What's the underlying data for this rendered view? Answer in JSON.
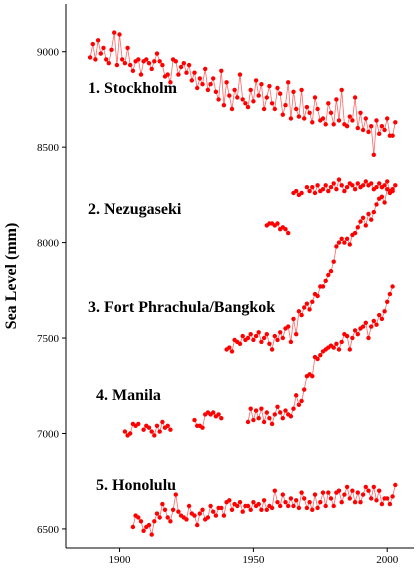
{
  "chart_data": {
    "type": "scatter",
    "title": "",
    "xlabel": "",
    "ylabel": "Sea Level (mm)",
    "xlim": [
      1880,
      2010
    ],
    "ylim": [
      6400,
      9250
    ],
    "x_ticks": [
      1900,
      1950,
      2000
    ],
    "y_ticks": [
      6500,
      7000,
      7500,
      8000,
      8500,
      9000
    ],
    "grid": false,
    "marker_color": "#ff0000",
    "line_color": "#ff6666",
    "series": [
      {
        "name": "1. Stockholm",
        "x": [
          1889,
          1890,
          1891,
          1892,
          1893,
          1894,
          1895,
          1896,
          1897,
          1898,
          1899,
          1900,
          1901,
          1902,
          1903,
          1904,
          1905,
          1906,
          1907,
          1908,
          1909,
          1910,
          1911,
          1912,
          1913,
          1914,
          1915,
          1916,
          1917,
          1918,
          1919,
          1920,
          1921,
          1922,
          1923,
          1924,
          1925,
          1926,
          1927,
          1928,
          1929,
          1930,
          1931,
          1932,
          1933,
          1934,
          1935,
          1936,
          1937,
          1938,
          1939,
          1940,
          1941,
          1942,
          1943,
          1944,
          1945,
          1946,
          1947,
          1948,
          1949,
          1950,
          1951,
          1952,
          1953,
          1954,
          1955,
          1956,
          1957,
          1958,
          1959,
          1960,
          1961,
          1962,
          1963,
          1964,
          1965,
          1966,
          1967,
          1968,
          1969,
          1970,
          1971,
          1972,
          1973,
          1974,
          1975,
          1976,
          1977,
          1978,
          1979,
          1980,
          1981,
          1982,
          1983,
          1984,
          1985,
          1986,
          1987,
          1988,
          1989,
          1990,
          1991,
          1992,
          1993,
          1994,
          1995,
          1996,
          1997,
          1998,
          1999,
          2000,
          2001,
          2002,
          2003
        ],
        "y": [
          8970,
          9040,
          8960,
          9060,
          8990,
          9020,
          8960,
          8940,
          9010,
          9100,
          8930,
          9090,
          8960,
          8940,
          9020,
          8930,
          8900,
          8950,
          8960,
          8880,
          8950,
          8960,
          8940,
          8910,
          8950,
          8990,
          8950,
          8930,
          8870,
          8880,
          8840,
          8960,
          8950,
          8880,
          8920,
          8940,
          8890,
          8930,
          8850,
          8890,
          8810,
          8860,
          8830,
          8910,
          8800,
          8830,
          8860,
          8790,
          8750,
          8900,
          8720,
          8840,
          8770,
          8700,
          8800,
          8760,
          8880,
          8750,
          8730,
          8710,
          8800,
          8740,
          8850,
          8770,
          8830,
          8700,
          8760,
          8820,
          8730,
          8700,
          8810,
          8780,
          8670,
          8720,
          8840,
          8650,
          8790,
          8700,
          8660,
          8800,
          8650,
          8710,
          8680,
          8630,
          8760,
          8700,
          8640,
          8650,
          8620,
          8730,
          8680,
          8620,
          8750,
          8640,
          8800,
          8620,
          8610,
          8660,
          8640,
          8760,
          8600,
          8680,
          8590,
          8650,
          8580,
          8610,
          8460,
          8640,
          8570,
          8610,
          8590,
          8650,
          8560,
          8560,
          8630
        ]
      },
      {
        "name": "2. Nezugaseki",
        "x": [
          1955,
          1956,
          1957,
          1958,
          1959,
          1960,
          1961,
          1962,
          1963,
          1965,
          1966,
          1967,
          1968,
          1970,
          1971,
          1972,
          1973,
          1974,
          1975,
          1976,
          1977,
          1978,
          1979,
          1980,
          1981,
          1982,
          1983,
          1984,
          1985,
          1986,
          1987,
          1988,
          1989,
          1990,
          1991,
          1992,
          1993,
          1994,
          1995,
          1996,
          1997,
          1998,
          1999,
          2000,
          2001,
          2002,
          2003
        ],
        "y": [
          8090,
          8100,
          8100,
          8090,
          8100,
          8070,
          8080,
          8070,
          8050,
          8260,
          8270,
          8250,
          8260,
          8290,
          8270,
          8290,
          8260,
          8300,
          8270,
          8280,
          8300,
          8270,
          8290,
          8310,
          8280,
          8330,
          8300,
          8270,
          8290,
          8310,
          8300,
          8280,
          8310,
          8290,
          8300,
          8320,
          8300,
          8310,
          8280,
          8290,
          8310,
          8290,
          8300,
          8320,
          8270,
          8280,
          8300
        ]
      },
      {
        "name": "3. Fort Phrachula/Bangkok",
        "x": [
          1940,
          1941,
          1942,
          1943,
          1944,
          1945,
          1946,
          1947,
          1948,
          1949,
          1950,
          1951,
          1952,
          1953,
          1954,
          1955,
          1956,
          1957,
          1958,
          1959,
          1960,
          1961,
          1962,
          1963,
          1964,
          1965,
          1966,
          1967,
          1968,
          1969,
          1970,
          1971,
          1972,
          1973,
          1974,
          1975,
          1976,
          1977,
          1978,
          1979,
          1980,
          1981,
          1982,
          1983,
          1984,
          1985,
          1986,
          1987,
          1988,
          1989,
          1990,
          1991,
          1992,
          1993,
          1994,
          1995,
          1996,
          1997,
          1998,
          1999,
          2000,
          2001,
          2002
        ],
        "y": [
          7440,
          7450,
          7430,
          7490,
          7480,
          7470,
          7510,
          7490,
          7500,
          7520,
          7490,
          7510,
          7530,
          7480,
          7500,
          7520,
          7470,
          7440,
          7510,
          7490,
          7530,
          7500,
          7550,
          7560,
          7480,
          7600,
          7520,
          7640,
          7620,
          7660,
          7680,
          7650,
          7690,
          7730,
          7720,
          7770,
          7770,
          7800,
          7830,
          7850,
          7900,
          7980,
          8000,
          8020,
          8000,
          8020,
          7990,
          8040,
          8050,
          8080,
          8110,
          8130,
          8090,
          8150,
          8120,
          8160,
          8200,
          8230,
          8240,
          8210,
          8280,
          8260,
          8270
        ]
      },
      {
        "name": "4. Manila",
        "x": [
          1902,
          1903,
          1904,
          1905,
          1906,
          1907,
          1909,
          1910,
          1911,
          1912,
          1913,
          1914,
          1915,
          1916,
          1917,
          1918,
          1919,
          1928,
          1929,
          1930,
          1931,
          1932,
          1933,
          1934,
          1935,
          1936,
          1937,
          1938,
          1948,
          1949,
          1950,
          1951,
          1952,
          1953,
          1954,
          1955,
          1956,
          1957,
          1958,
          1959,
          1960,
          1961,
          1962,
          1963,
          1964,
          1965,
          1966,
          1967,
          1968,
          1969,
          1970,
          1971,
          1972,
          1973,
          1974,
          1975,
          1976,
          1977,
          1978,
          1979,
          1980,
          1981,
          1982,
          1983,
          1984,
          1985,
          1986,
          1987,
          1988,
          1989,
          1990,
          1991,
          1992,
          1993,
          1994,
          1995,
          1996,
          1997,
          1998,
          1999,
          2000,
          2001,
          2002
        ],
        "y": [
          7010,
          6990,
          7000,
          7050,
          7040,
          7050,
          7020,
          7040,
          7030,
          7010,
          6990,
          7040,
          7010,
          7060,
          7030,
          7040,
          7020,
          7070,
          7040,
          7040,
          7030,
          7100,
          7110,
          7100,
          7110,
          7090,
          7100,
          7080,
          7060,
          7130,
          7070,
          7120,
          7080,
          7130,
          7060,
          7110,
          7080,
          7050,
          7100,
          7140,
          7110,
          7080,
          7120,
          7100,
          7090,
          7130,
          7200,
          7150,
          7170,
          7230,
          7300,
          7310,
          7300,
          7400,
          7390,
          7410,
          7430,
          7440,
          7450,
          7460,
          7450,
          7470,
          7440,
          7480,
          7520,
          7510,
          7440,
          7500,
          7540,
          7520,
          7550,
          7560,
          7580,
          7500,
          7560,
          7590,
          7570,
          7620,
          7600,
          7640,
          7690,
          7730,
          7770
        ]
      },
      {
        "name": "5. Honolulu",
        "x": [
          1905,
          1906,
          1907,
          1908,
          1909,
          1910,
          1911,
          1912,
          1913,
          1914,
          1915,
          1916,
          1917,
          1918,
          1919,
          1920,
          1921,
          1922,
          1923,
          1924,
          1925,
          1926,
          1927,
          1928,
          1929,
          1930,
          1931,
          1932,
          1933,
          1934,
          1935,
          1936,
          1937,
          1938,
          1939,
          1940,
          1941,
          1942,
          1943,
          1944,
          1945,
          1946,
          1947,
          1948,
          1949,
          1950,
          1951,
          1952,
          1953,
          1954,
          1955,
          1956,
          1957,
          1958,
          1959,
          1960,
          1961,
          1962,
          1963,
          1964,
          1965,
          1966,
          1967,
          1968,
          1969,
          1970,
          1971,
          1972,
          1973,
          1974,
          1975,
          1976,
          1977,
          1978,
          1979,
          1980,
          1981,
          1982,
          1983,
          1984,
          1985,
          1986,
          1987,
          1988,
          1989,
          1990,
          1991,
          1992,
          1993,
          1994,
          1995,
          1996,
          1997,
          1998,
          1999,
          2000,
          2001,
          2002,
          2003
        ],
        "y": [
          6510,
          6570,
          6560,
          6540,
          6490,
          6510,
          6520,
          6470,
          6540,
          6580,
          6560,
          6630,
          6600,
          6560,
          6540,
          6600,
          6680,
          6590,
          6570,
          6560,
          6550,
          6620,
          6580,
          6570,
          6520,
          6580,
          6600,
          6550,
          6560,
          6620,
          6590,
          6570,
          6610,
          6610,
          6570,
          6640,
          6650,
          6600,
          6630,
          6620,
          6640,
          6590,
          6620,
          6620,
          6600,
          6640,
          6620,
          6630,
          6600,
          6650,
          6600,
          6620,
          6610,
          6700,
          6640,
          6620,
          6680,
          6640,
          6620,
          6660,
          6620,
          6650,
          6610,
          6690,
          6660,
          6610,
          6640,
          6600,
          6680,
          6610,
          6640,
          6690,
          6620,
          6690,
          6660,
          6620,
          6690,
          6700,
          6640,
          6680,
          6720,
          6660,
          6700,
          6640,
          6690,
          6640,
          6680,
          6720,
          6700,
          6660,
          6720,
          6650,
          6700,
          6630,
          6660,
          6660,
          6630,
          6670,
          6730
        ]
      }
    ]
  }
}
